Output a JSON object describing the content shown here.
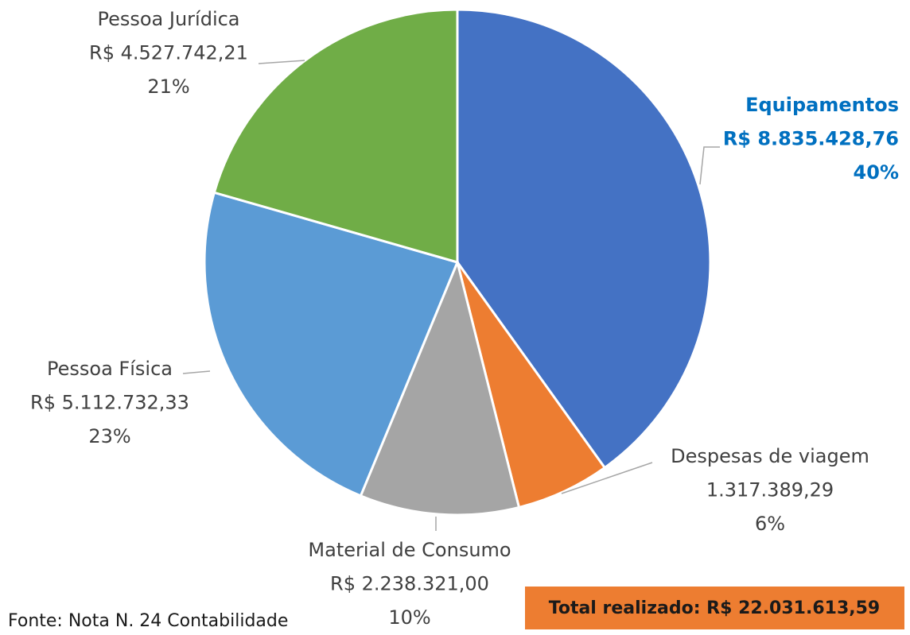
{
  "chart_data": {
    "type": "pie",
    "categories": [
      "Equipamentos",
      "Despesas de viagem",
      "Material de Consumo",
      "Pessoa Física",
      "Pessoa Jurídica"
    ],
    "values": [
      8835428.76,
      1317389.29,
      2238321.0,
      5112732.33,
      4527742.21
    ],
    "value_labels": [
      "R$ 8.835.428,76",
      "1.317.389,29",
      "R$ 2.238.321,00",
      "R$ 5.112.732,33",
      "R$ 4.527.742,21"
    ],
    "percent_labels": [
      "40%",
      "6%",
      "10%",
      "23%",
      "21%"
    ],
    "colors": [
      "#4472c4",
      "#ed7d31",
      "#a5a5a5",
      "#5b9bd5",
      "#70ad47"
    ],
    "source": "Fonte: Nota N. 24 Contabilidade",
    "total_label": "Total realizado: R$ 22.031.613,59"
  }
}
